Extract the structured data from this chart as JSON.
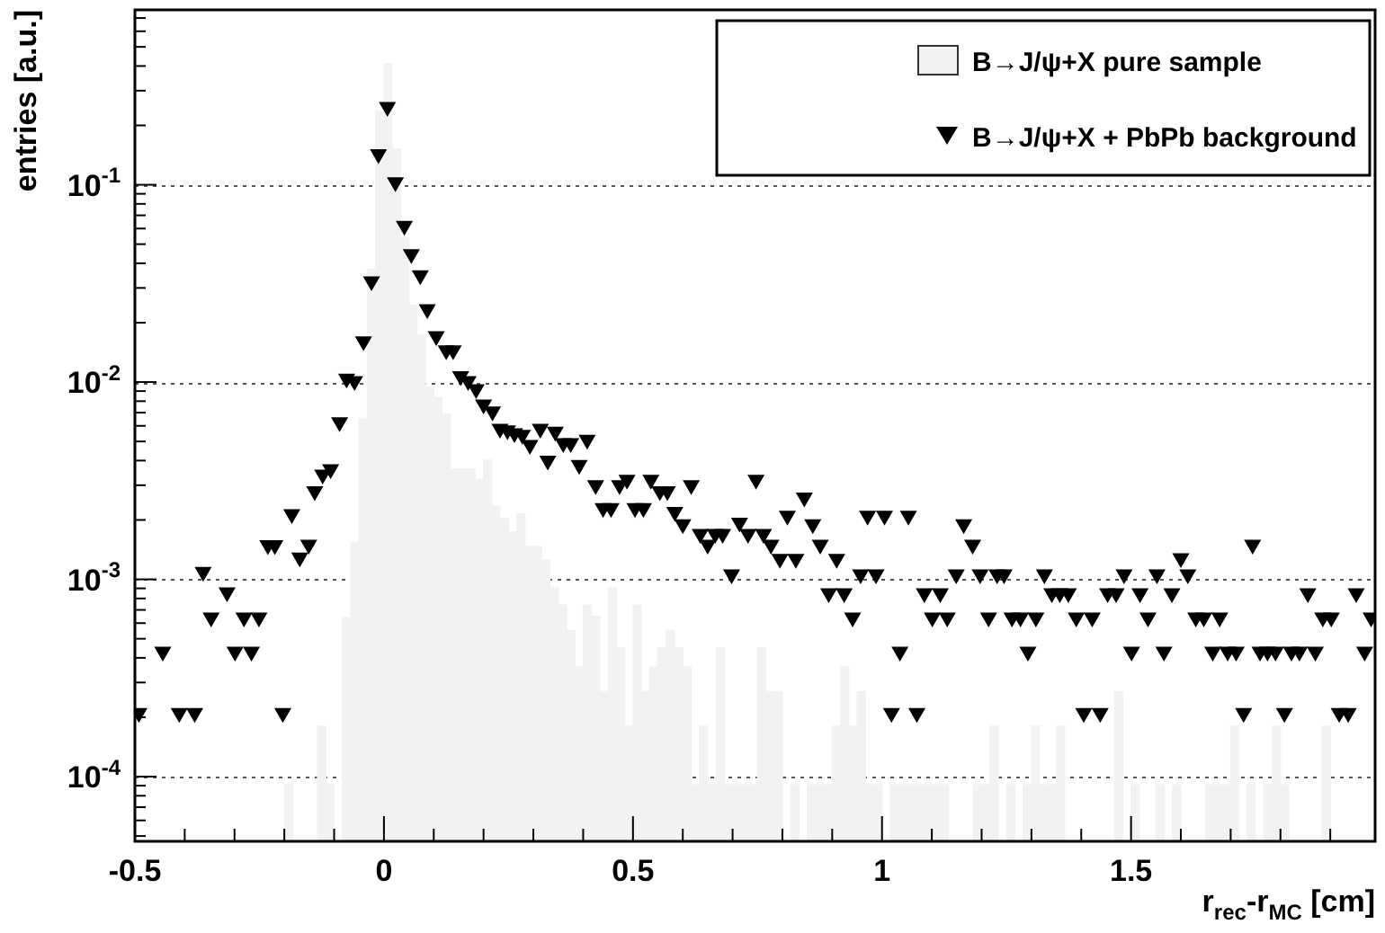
{
  "chart_data": {
    "type": "histogram",
    "xlabel": "r$_{rec}$-r$_{MC}$ [cm]",
    "ylabel": "entries [a.u.]",
    "bins": [
      -0.5,
      -0.4833,
      -0.4667,
      -0.45,
      -0.4333,
      -0.4167,
      -0.4,
      -0.3833,
      -0.3667,
      -0.35,
      -0.3333,
      -0.3167,
      -0.3,
      -0.2833,
      -0.2667,
      -0.25,
      -0.2333,
      -0.2167,
      -0.2,
      -0.1833,
      -0.1667,
      -0.15,
      -0.1333,
      -0.1167,
      -0.1,
      -0.0833,
      -0.0667,
      -0.05,
      -0.0333,
      -0.0167,
      0,
      0.0167,
      0.0333,
      0.05,
      0.0667,
      0.0833,
      0.1,
      0.1167,
      0.1333,
      0.15,
      0.1667,
      0.1833,
      0.2,
      0.2167,
      0.2333,
      0.25,
      0.2667,
      0.2833,
      0.3,
      0.3167,
      0.3333,
      0.35,
      0.3667,
      0.3833,
      0.4,
      0.4167,
      0.4333,
      0.45,
      0.4667,
      0.4833,
      0.5,
      0.5167,
      0.5333,
      0.55,
      0.5667,
      0.5833,
      0.6,
      0.6167,
      0.6333,
      0.65,
      0.6667,
      0.6833,
      0.7,
      0.7167,
      0.7333,
      0.75,
      0.7667,
      0.7833,
      0.8,
      0.8167,
      0.8333,
      0.85,
      0.8667,
      0.8833,
      0.9,
      0.9167,
      0.9333,
      0.95,
      0.9667,
      0.9833,
      1,
      1.0167,
      1.0333,
      1.05,
      1.0667,
      1.0833,
      1.1,
      1.1167,
      1.1333,
      1.15,
      1.1667,
      1.1833,
      1.2,
      1.2167,
      1.2333,
      1.25,
      1.2667,
      1.2833,
      1.3,
      1.3167,
      1.3333,
      1.35,
      1.3667,
      1.3833,
      1.4,
      1.4167,
      1.4333,
      1.45,
      1.4667,
      1.4833,
      1.5,
      1.5167,
      1.5333,
      1.55,
      1.5667,
      1.5833,
      1.6,
      1.6167,
      1.6333,
      1.65,
      1.6667,
      1.6833,
      1.7,
      1.7167,
      1.7333,
      1.75,
      1.7667,
      1.7833,
      1.8,
      1.8167,
      1.8333,
      1.85,
      1.8667,
      1.8833,
      1.9,
      1.9167,
      1.9333,
      1.95,
      1.9667,
      1.9833
    ],
    "series": [
      {
        "name": "B→J/ψ+X pure sample",
        "color": "#f2f2f2",
        "values": [
          null,
          null,
          null,
          null,
          null,
          null,
          null,
          null,
          null,
          null,
          null,
          null,
          null,
          null,
          null,
          null,
          null,
          null,
          9.1e-05,
          null,
          null,
          null,
          0.00018,
          9.1e-05,
          null,
          0.00064,
          0.00154,
          0.0065,
          0.0374,
          0.237,
          0.411,
          0.152,
          0.054,
          0.0245,
          0.0173,
          0.0094,
          0.0084,
          0.00686,
          0.00362,
          0.00362,
          0.00362,
          0.00321,
          0.00402,
          0.00234,
          0.00204,
          0.00174,
          0.00215,
          0.00147,
          0.00147,
          0.00125,
          0.00091,
          0.00074,
          0.00055,
          0.00036,
          0.00074,
          0.00065,
          0.00027,
          0.00091,
          0.00045,
          0.00018,
          0.00074,
          0.00027,
          0.00036,
          0.00045,
          0.00055,
          0.00045,
          0.00036,
          9.1e-05,
          0.00018,
          9.1e-05,
          0.00045,
          9.1e-05,
          9.1e-05,
          9.1e-05,
          9.1e-05,
          0.00045,
          0.00027,
          0.00027,
          null,
          9.1e-05,
          null,
          9.1e-05,
          9.1e-05,
          9.1e-05,
          0.00018,
          0.00036,
          0.00018,
          0.00027,
          9.1e-05,
          9.1e-05,
          null,
          9.1e-05,
          9.1e-05,
          9.1e-05,
          9.1e-05,
          9.1e-05,
          9.1e-05,
          9.1e-05,
          null,
          null,
          null,
          9.1e-05,
          9.1e-05,
          0.00018,
          null,
          9.1e-05,
          null,
          9.1e-05,
          0.00018,
          9.1e-05,
          9.1e-05,
          0.00018,
          null,
          null,
          null,
          null,
          null,
          null,
          0.00027,
          null,
          9.1e-05,
          null,
          null,
          9.1e-05,
          null,
          9.1e-05,
          null,
          null,
          null,
          9.1e-05,
          9.1e-05,
          9.1e-05,
          0.00018,
          null,
          9.1e-05,
          null,
          9.1e-05,
          0.00018,
          9.1e-05,
          null,
          null,
          null,
          null,
          0.00018,
          null,
          null,
          null,
          null,
          null
        ]
      },
      {
        "name": "B→J/ψ+X + PbPb background",
        "type": "scatter",
        "color": "#000000",
        "marker": "triangle",
        "x": [
          -0.492,
          -0.444,
          -0.411,
          -0.38,
          -0.363,
          -0.347,
          -0.315,
          -0.299,
          -0.281,
          -0.266,
          -0.251,
          -0.233,
          -0.219,
          -0.203,
          -0.185,
          -0.169,
          -0.151,
          -0.139,
          -0.123,
          -0.107,
          -0.089,
          -0.075,
          -0.059,
          -0.041,
          -0.025,
          -0.011,
          0.007,
          0.023,
          0.041,
          0.055,
          0.073,
          0.087,
          0.105,
          0.125,
          0.139,
          0.154,
          0.169,
          0.185,
          0.2,
          0.218,
          0.233,
          0.248,
          0.262,
          0.278,
          0.293,
          0.314,
          0.329,
          0.344,
          0.36,
          0.375,
          0.392,
          0.408,
          0.425,
          0.44,
          0.456,
          0.473,
          0.488,
          0.504,
          0.521,
          0.536,
          0.554,
          0.569,
          0.584,
          0.6,
          0.617,
          0.635,
          0.65,
          0.665,
          0.68,
          0.698,
          0.714,
          0.731,
          0.747,
          0.762,
          0.777,
          0.795,
          0.81,
          0.827,
          0.844,
          0.861,
          0.876,
          0.893,
          0.909,
          0.924,
          0.941,
          0.957,
          0.971,
          0.988,
          1.005,
          1.019,
          1.036,
          1.053,
          1.07,
          1.085,
          1.101,
          1.117,
          1.131,
          1.149,
          1.164,
          1.182,
          1.197,
          1.214,
          1.231,
          1.245,
          1.261,
          1.278,
          1.293,
          1.309,
          1.326,
          1.341,
          1.357,
          1.374,
          1.39,
          1.405,
          1.422,
          1.438,
          1.453,
          1.47,
          1.486,
          1.501,
          1.518,
          1.534,
          1.552,
          1.566,
          1.582,
          1.6,
          1.614,
          1.63,
          1.646,
          1.664,
          1.678,
          1.694,
          1.711,
          1.726,
          1.744,
          1.759,
          1.774,
          1.79,
          1.808,
          1.822,
          1.838,
          1.855,
          1.87,
          1.885,
          1.902,
          1.918,
          1.936,
          1.952,
          1.969,
          1.982
        ],
        "values": [
          0.00021,
          0.00043,
          0.00021,
          0.00021,
          0.00109,
          0.00064,
          0.00086,
          0.00043,
          0.00064,
          0.00043,
          0.00064,
          0.00149,
          0.00149,
          0.00021,
          0.00214,
          0.00129,
          0.0015,
          0.0028,
          0.0034,
          0.00362,
          0.00625,
          0.0104,
          0.0101,
          0.0161,
          0.0324,
          0.143,
          0.248,
          0.103,
          0.062,
          0.0445,
          0.0348,
          0.0234,
          0.0171,
          0.0145,
          0.0145,
          0.0107,
          0.0101,
          0.0092,
          0.0077,
          0.0071,
          0.0058,
          0.0057,
          0.0055,
          0.0054,
          0.0048,
          0.0058,
          0.004,
          0.0056,
          0.0049,
          0.0049,
          0.0038,
          0.0051,
          0.003,
          0.0023,
          0.0023,
          0.003,
          0.0032,
          0.0023,
          0.0023,
          0.0032,
          0.0028,
          0.0028,
          0.0022,
          0.0019,
          0.003,
          0.0017,
          0.0015,
          0.0017,
          0.0017,
          0.00106,
          0.00194,
          0.0017,
          0.0032,
          0.0017,
          0.0015,
          0.00127,
          0.0021,
          0.00127,
          0.0026,
          0.0019,
          0.0015,
          0.00085,
          0.00127,
          0.00085,
          0.00064,
          0.00106,
          0.0021,
          0.00106,
          0.0021,
          0.00021,
          0.00043,
          0.0021,
          0.00021,
          0.00085,
          0.00064,
          0.00085,
          0.00064,
          0.00106,
          0.0019,
          0.0015,
          0.00106,
          0.00064,
          0.00106,
          0.00106,
          0.00064,
          0.00064,
          0.00043,
          0.00064,
          0.00106,
          0.00085,
          0.00085,
          0.00085,
          0.00064,
          0.00021,
          0.00064,
          0.00021,
          0.00085,
          0.00085,
          0.00106,
          0.00043,
          0.00085,
          0.00064,
          0.00106,
          0.00043,
          0.00085,
          0.00128,
          0.00106,
          0.00064,
          0.00064,
          0.00043,
          0.00064,
          0.00043,
          0.00043,
          0.00021,
          0.0015,
          0.00043,
          0.00043,
          0.00043,
          0.00021,
          0.00043,
          0.00043,
          0.00085,
          0.00043,
          0.00064,
          0.00064,
          0.00021,
          0.00021,
          0.00085,
          0.00043,
          0.00064
        ]
      }
    ],
    "xlim": [
      -0.5,
      1.99
    ],
    "xticks": [
      -0.5,
      {
        "value": -0.4,
        "label": null
      },
      {
        "value": -0.3,
        "label": null
      },
      {
        "value": -0.2,
        "label": null
      },
      {
        "value": -0.1,
        "label": null
      },
      0,
      {
        "value": 0.1,
        "label": null
      },
      {
        "value": 0.2,
        "label": null
      },
      {
        "value": 0.3,
        "label": null
      },
      {
        "value": 0.4,
        "label": null
      },
      0.5,
      {
        "value": 0.6,
        "label": null
      },
      {
        "value": 0.7,
        "label": null
      },
      {
        "value": 0.8,
        "label": null
      },
      {
        "value": 0.9,
        "label": null
      },
      1,
      {
        "value": 1.1,
        "label": null
      },
      {
        "value": 1.2,
        "label": null
      },
      {
        "value": 1.3,
        "label": null
      },
      {
        "value": 1.4,
        "label": null
      },
      1.5,
      {
        "value": 1.6,
        "label": null
      },
      {
        "value": 1.7,
        "label": null
      },
      {
        "value": 1.8,
        "label": null
      },
      {
        "value": 1.9,
        "label": null
      }
    ],
    "ylim": [
      4.7e-05,
      0.77
    ],
    "yticks": [
      {
        "value": 5e-05,
        "label": null
      },
      {
        "value": 6e-05,
        "label": null
      },
      {
        "value": 7e-05,
        "label": null
      },
      {
        "value": 8e-05,
        "label": null
      },
      {
        "value": 9e-05,
        "label": null
      },
      {
        "value": 0.0001,
        "label": "10$^{-4}$"
      },
      {
        "value": 0.0002,
        "label": null
      },
      {
        "value": 0.0003,
        "label": null
      },
      {
        "value": 0.0004,
        "label": null
      },
      {
        "value": 0.0005,
        "label": null
      },
      {
        "value": 0.0006,
        "label": null
      },
      {
        "value": 0.0007,
        "label": null
      },
      {
        "value": 0.0008,
        "label": null
      },
      {
        "value": 0.0009,
        "label": null
      },
      {
        "value": 0.001,
        "label": "10$^{-3}$"
      },
      {
        "value": 0.002,
        "label": null
      },
      {
        "value": 0.003,
        "label": null
      },
      {
        "value": 0.004,
        "label": null
      },
      {
        "value": 0.005,
        "label": null
      },
      {
        "value": 0.006,
        "label": null
      },
      {
        "value": 0.007,
        "label": null
      },
      {
        "value": 0.008,
        "label": null
      },
      {
        "value": 0.009,
        "label": null
      },
      {
        "value": 0.01,
        "label": "10$^{-2}$"
      },
      {
        "value": 0.02,
        "label": null
      },
      {
        "value": 0.03,
        "label": null
      },
      {
        "value": 0.04,
        "label": null
      },
      {
        "value": 0.05,
        "label": null
      },
      {
        "value": 0.06,
        "label": null
      },
      {
        "value": 0.07,
        "label": null
      },
      {
        "value": 0.08,
        "label": null
      },
      {
        "value": 0.09,
        "label": null
      },
      {
        "value": 0.1,
        "label": "10$^{-1}$"
      },
      {
        "value": 0.2,
        "label": null
      },
      {
        "value": 0.3,
        "label": null
      },
      {
        "value": 0.4,
        "label": null
      },
      {
        "value": 0.5,
        "label": null
      },
      {
        "value": 0.6,
        "label": null
      },
      {
        "value": 0.7,
        "label": null
      }
    ],
    "log": "y",
    "grid": "y",
    "legend": "top right"
  }
}
